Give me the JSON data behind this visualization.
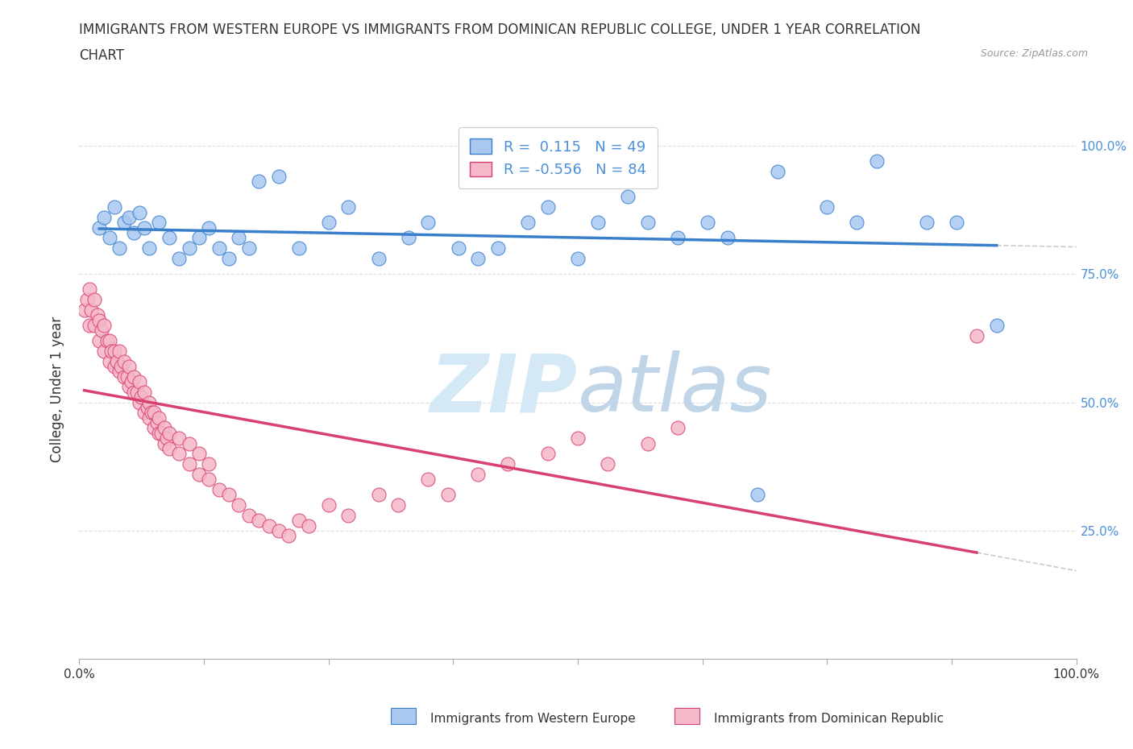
{
  "title_line1": "IMMIGRANTS FROM WESTERN EUROPE VS IMMIGRANTS FROM DOMINICAN REPUBLIC COLLEGE, UNDER 1 YEAR CORRELATION",
  "title_line2": "CHART",
  "source_text": "Source: ZipAtlas.com",
  "ylabel": "College, Under 1 year",
  "xlim": [
    0.0,
    1.0
  ],
  "ylim": [
    0.0,
    1.05
  ],
  "blue_R": 0.115,
  "blue_N": 49,
  "pink_R": -0.556,
  "pink_N": 84,
  "blue_color": "#A8C8F0",
  "pink_color": "#F5B8C8",
  "blue_line_color": "#3A7FCC",
  "pink_line_color": "#D84070",
  "watermark_zip": "ZIP",
  "watermark_atlas": "atlas",
  "watermark_color_zip": "#D8E8F5",
  "watermark_color_atlas": "#C5D8E8",
  "background_color": "#FFFFFF",
  "grid_color": "#DDDDDD",
  "title_fontsize": 12,
  "axis_label_fontsize": 12,
  "tick_fontsize": 11,
  "right_tick_color": "#4A90D9",
  "blue_x": [
    0.02,
    0.025,
    0.03,
    0.035,
    0.04,
    0.045,
    0.05,
    0.055,
    0.06,
    0.065,
    0.07,
    0.08,
    0.09,
    0.1,
    0.11,
    0.12,
    0.13,
    0.14,
    0.15,
    0.16,
    0.17,
    0.18,
    0.2,
    0.22,
    0.25,
    0.27,
    0.3,
    0.33,
    0.35,
    0.38,
    0.4,
    0.42,
    0.45,
    0.47,
    0.5,
    0.52,
    0.55,
    0.57,
    0.6,
    0.63,
    0.65,
    0.68,
    0.7,
    0.75,
    0.78,
    0.8,
    0.85,
    0.88,
    0.92
  ],
  "blue_y": [
    0.84,
    0.86,
    0.82,
    0.88,
    0.8,
    0.85,
    0.86,
    0.83,
    0.87,
    0.84,
    0.8,
    0.85,
    0.82,
    0.78,
    0.8,
    0.82,
    0.84,
    0.8,
    0.78,
    0.82,
    0.8,
    0.93,
    0.94,
    0.8,
    0.85,
    0.88,
    0.78,
    0.82,
    0.85,
    0.8,
    0.78,
    0.8,
    0.85,
    0.88,
    0.78,
    0.85,
    0.9,
    0.85,
    0.82,
    0.85,
    0.82,
    0.32,
    0.95,
    0.88,
    0.85,
    0.97,
    0.85,
    0.85,
    0.65
  ],
  "pink_x": [
    0.005,
    0.008,
    0.01,
    0.01,
    0.012,
    0.015,
    0.015,
    0.018,
    0.02,
    0.02,
    0.022,
    0.025,
    0.025,
    0.028,
    0.03,
    0.03,
    0.032,
    0.035,
    0.035,
    0.038,
    0.04,
    0.04,
    0.042,
    0.045,
    0.045,
    0.048,
    0.05,
    0.05,
    0.052,
    0.055,
    0.055,
    0.058,
    0.06,
    0.06,
    0.062,
    0.065,
    0.065,
    0.068,
    0.07,
    0.07,
    0.072,
    0.075,
    0.075,
    0.078,
    0.08,
    0.08,
    0.082,
    0.085,
    0.085,
    0.088,
    0.09,
    0.09,
    0.1,
    0.1,
    0.11,
    0.11,
    0.12,
    0.12,
    0.13,
    0.13,
    0.14,
    0.15,
    0.16,
    0.17,
    0.18,
    0.19,
    0.2,
    0.21,
    0.22,
    0.23,
    0.25,
    0.27,
    0.3,
    0.32,
    0.35,
    0.37,
    0.4,
    0.43,
    0.47,
    0.5,
    0.53,
    0.57,
    0.6,
    0.9
  ],
  "pink_y": [
    0.68,
    0.7,
    0.65,
    0.72,
    0.68,
    0.65,
    0.7,
    0.67,
    0.62,
    0.66,
    0.64,
    0.6,
    0.65,
    0.62,
    0.58,
    0.62,
    0.6,
    0.57,
    0.6,
    0.58,
    0.56,
    0.6,
    0.57,
    0.55,
    0.58,
    0.55,
    0.53,
    0.57,
    0.54,
    0.52,
    0.55,
    0.52,
    0.5,
    0.54,
    0.51,
    0.48,
    0.52,
    0.49,
    0.47,
    0.5,
    0.48,
    0.45,
    0.48,
    0.46,
    0.44,
    0.47,
    0.44,
    0.42,
    0.45,
    0.43,
    0.41,
    0.44,
    0.4,
    0.43,
    0.38,
    0.42,
    0.36,
    0.4,
    0.35,
    0.38,
    0.33,
    0.32,
    0.3,
    0.28,
    0.27,
    0.26,
    0.25,
    0.24,
    0.27,
    0.26,
    0.3,
    0.28,
    0.32,
    0.3,
    0.35,
    0.32,
    0.36,
    0.38,
    0.4,
    0.43,
    0.38,
    0.42,
    0.45,
    0.63
  ]
}
